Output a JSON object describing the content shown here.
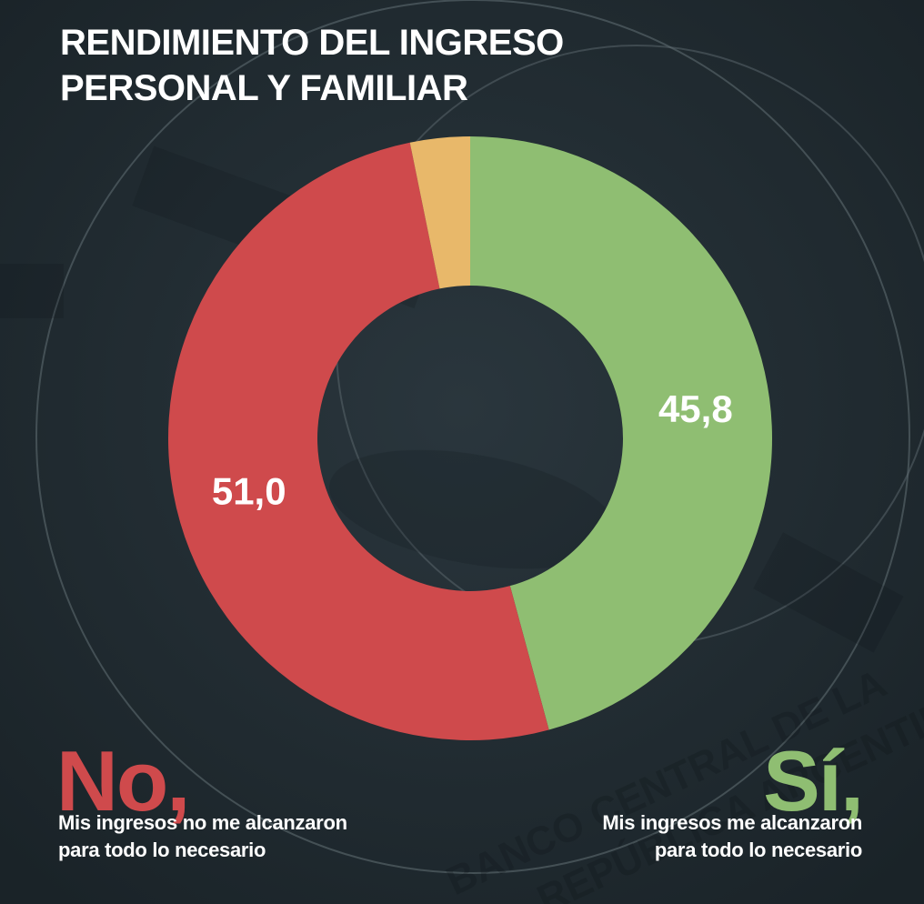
{
  "title_lines": [
    "RENDIMIENTO DEL INGRESO",
    "PERSONAL Y FAMILIAR"
  ],
  "chart_data": {
    "type": "pie",
    "donut": true,
    "slices": [
      {
        "key": "si",
        "value": 45.8,
        "label": "45,8",
        "color": "#8fbe72"
      },
      {
        "key": "no",
        "value": 51.0,
        "label": "51,0",
        "color": "#cf4a4c"
      },
      {
        "key": "other",
        "value": 3.2,
        "label": "",
        "color": "#e8b86a"
      }
    ],
    "start": "top",
    "direction": "clockwise"
  },
  "legend": {
    "no": {
      "word": "No,",
      "lines": [
        "Mis ingresos no me alcanzaron",
        "para todo lo necesario"
      ],
      "color": "#cf4a4c"
    },
    "si": {
      "word": "Sí,",
      "lines": [
        "Mis ingresos me alcanzaron",
        "para todo lo necesario"
      ],
      "color": "#8fbe72"
    }
  },
  "background_watermark": [
    "BANCO CENTRAL DE LA",
    "REPÚBLICA ARGENTINA"
  ]
}
